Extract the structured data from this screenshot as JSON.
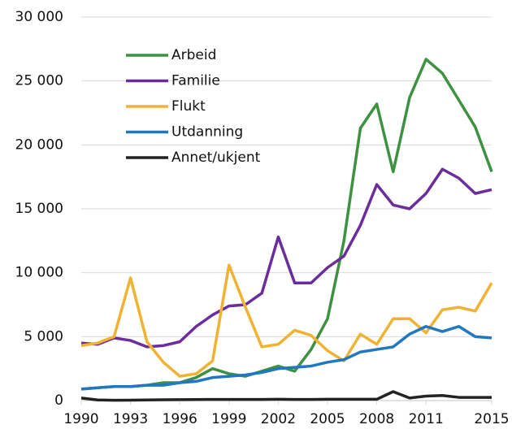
{
  "chart_data": {
    "type": "line",
    "x": [
      1990,
      1991,
      1992,
      1993,
      1994,
      1995,
      1996,
      1997,
      1998,
      1999,
      2000,
      2001,
      2002,
      2003,
      2004,
      2005,
      2006,
      2007,
      2008,
      2009,
      2010,
      2011,
      2012,
      2013,
      2014,
      2015
    ],
    "series": [
      {
        "name": "Arbeid",
        "color": "#3d9140",
        "values": [
          900,
          1000,
          1100,
          1100,
          1200,
          1400,
          1400,
          1800,
          2500,
          2100,
          1900,
          2300,
          2700,
          2300,
          4000,
          6400,
          12500,
          21300,
          23200,
          17900,
          23700,
          26700,
          25600,
          23500,
          21400,
          17900
        ]
      },
      {
        "name": "Familie",
        "color": "#6b2d9b",
        "values": [
          4500,
          4400,
          4900,
          4700,
          4200,
          4300,
          4600,
          5800,
          6700,
          7400,
          7500,
          8400,
          12800,
          9200,
          9200,
          10400,
          11300,
          13700,
          16900,
          15300,
          15000,
          16200,
          18100,
          17400,
          16200,
          16500
        ]
      },
      {
        "name": "Flukt",
        "color": "#f0b232",
        "values": [
          4300,
          4500,
          5000,
          9600,
          4600,
          3000,
          1900,
          2100,
          3100,
          10600,
          7300,
          4200,
          4400,
          5500,
          5100,
          3900,
          3100,
          5200,
          4400,
          6400,
          6400,
          5300,
          7100,
          7300,
          7000,
          9200
        ]
      },
      {
        "name": "Utdanning",
        "color": "#1f78c1",
        "values": [
          900,
          1000,
          1100,
          1100,
          1200,
          1200,
          1400,
          1500,
          1800,
          1900,
          2000,
          2200,
          2500,
          2600,
          2700,
          3000,
          3200,
          3800,
          4000,
          4200,
          5200,
          5800,
          5400,
          5800,
          5000,
          4900
        ]
      },
      {
        "name": "Annet/ukjent",
        "color": "#222222",
        "values": [
          200,
          50,
          20,
          30,
          50,
          60,
          70,
          80,
          90,
          90,
          90,
          90,
          100,
          90,
          90,
          100,
          100,
          100,
          100,
          700,
          200,
          350,
          400,
          250,
          250,
          250
        ]
      }
    ],
    "xlim": [
      1990,
      2015
    ],
    "xticks": [
      1990,
      1993,
      1996,
      1999,
      2002,
      2005,
      2008,
      2011,
      2015
    ],
    "ylim": [
      0,
      30000
    ],
    "yticks": [
      0,
      {
        "value": 5000,
        "label": "5 000"
      },
      {
        "value": 10000,
        "label": "10 000"
      },
      {
        "value": 15000,
        "label": "15 000"
      },
      {
        "value": 20000,
        "label": "20 000"
      },
      {
        "value": 25000,
        "label": "25 000"
      },
      {
        "value": 30000,
        "label": "30 000"
      }
    ],
    "grid": true,
    "legend": "top-left"
  }
}
